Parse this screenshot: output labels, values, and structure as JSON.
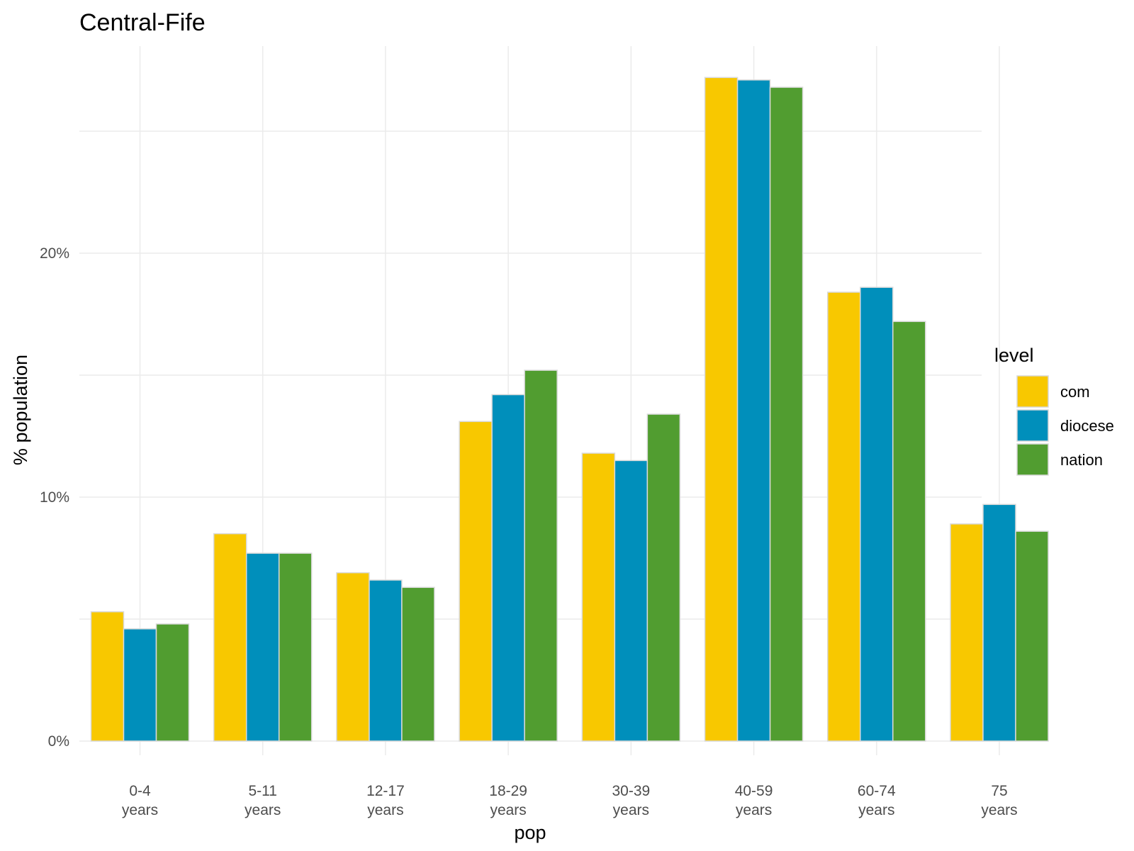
{
  "chart_data": {
    "type": "bar",
    "title": "Central-Fife",
    "xlabel": "pop",
    "ylabel": "% population",
    "categories": [
      "0-4\nyears",
      "5-11\nyears",
      "12-17\nyears",
      "18-29\nyears",
      "30-39\nyears",
      "40-59\nyears",
      "60-74\nyears",
      "75\nyears"
    ],
    "series": [
      {
        "name": "com",
        "color": "#f8c800",
        "values": [
          5.3,
          8.5,
          6.9,
          13.1,
          11.8,
          27.2,
          18.4,
          8.9
        ]
      },
      {
        "name": "diocese",
        "color": "#008fbb",
        "values": [
          4.6,
          7.7,
          6.6,
          14.2,
          11.5,
          27.1,
          18.6,
          9.7
        ]
      },
      {
        "name": "nation",
        "color": "#519d30",
        "values": [
          4.8,
          7.7,
          6.3,
          15.2,
          13.4,
          26.8,
          17.2,
          8.6
        ]
      }
    ],
    "ylim": [
      0,
      28.5
    ],
    "yticks": [
      0,
      10,
      20
    ],
    "ytick_labels": [
      "0%",
      "10%",
      "20%"
    ],
    "grid": true,
    "legend": {
      "title": "level",
      "position": "right"
    }
  }
}
